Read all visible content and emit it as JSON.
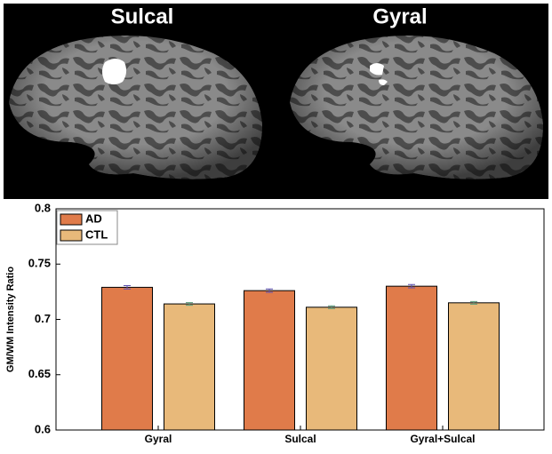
{
  "panels": [
    "Sulcal",
    "Gyral"
  ],
  "chart_data": {
    "type": "bar",
    "ylabel": "GM/WM Intensity Ratio",
    "categories": [
      "Gyral",
      "Sulcal",
      "Gyral+Sulcal"
    ],
    "series": [
      {
        "name": "AD",
        "color": "#e07b4a",
        "values": [
          0.729,
          0.726,
          0.73
        ],
        "errors": [
          0.0015,
          0.0015,
          0.0015
        ]
      },
      {
        "name": "CTL",
        "color": "#e8b97a",
        "values": [
          0.714,
          0.711,
          0.715
        ],
        "errors": [
          0.0012,
          0.0012,
          0.0012
        ]
      }
    ],
    "ylim": [
      0.6,
      0.8
    ],
    "yticks": [
      0.6,
      0.65,
      0.7,
      0.75,
      0.8
    ],
    "legend": "upper left"
  }
}
